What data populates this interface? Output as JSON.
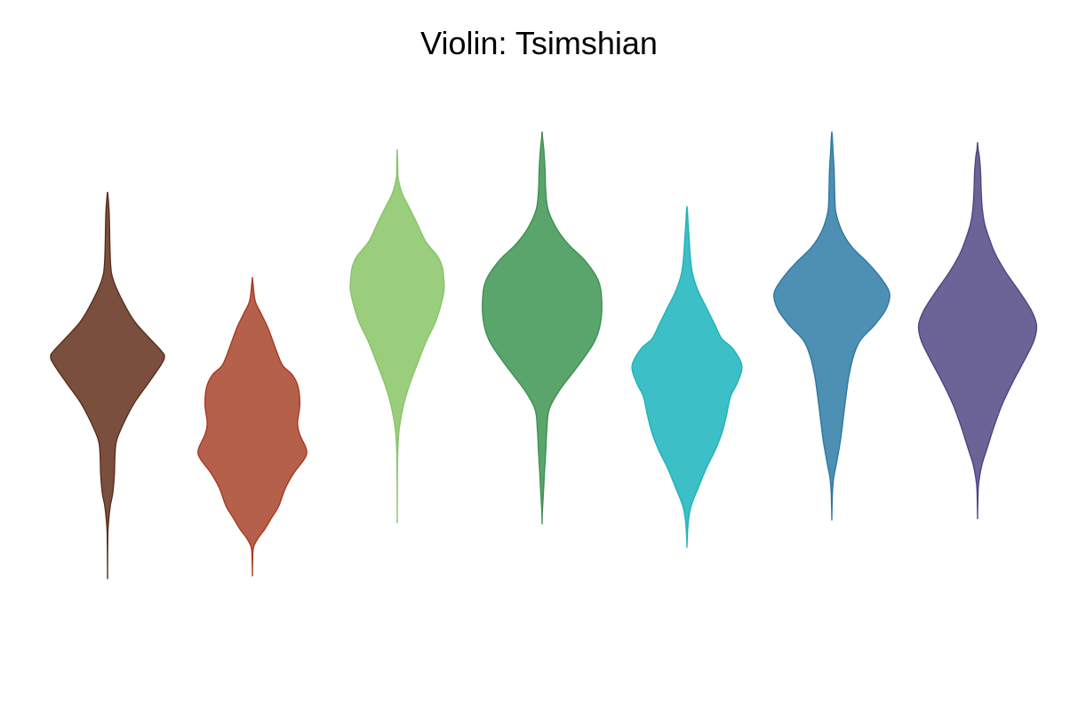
{
  "chart_data": {
    "type": "violin",
    "title": "Violin: Tsimshian",
    "xlabel": "",
    "ylabel": "",
    "grid": false,
    "legend": "none",
    "series": [
      {
        "color": "#7a4f3e",
        "stroke": "#5a2f1e",
        "profile": [
          [
            0,
            0
          ],
          [
            0.015,
            0.01
          ],
          [
            0.06,
            0.03
          ],
          [
            0.18,
            0.05
          ],
          [
            0.23,
            0.1
          ],
          [
            0.29,
            0.28
          ],
          [
            0.34,
            0.48
          ],
          [
            0.38,
            0.72
          ],
          [
            0.415,
            0.94
          ],
          [
            0.43,
            1.0
          ],
          [
            0.45,
            0.95
          ],
          [
            0.5,
            0.72
          ],
          [
            0.55,
            0.48
          ],
          [
            0.6,
            0.3
          ],
          [
            0.65,
            0.16
          ],
          [
            0.69,
            0.13
          ],
          [
            0.74,
            0.12
          ],
          [
            0.79,
            0.09
          ],
          [
            0.82,
            0.05
          ],
          [
            0.86,
            0.02
          ],
          [
            0.9,
            0.005
          ],
          [
            1,
            0
          ]
        ]
      },
      {
        "color": "#b5604a",
        "stroke": "#a83a22",
        "profile": [
          [
            0,
            0
          ],
          [
            0.02,
            0.01
          ],
          [
            0.08,
            0.05
          ],
          [
            0.12,
            0.15
          ],
          [
            0.17,
            0.28
          ],
          [
            0.23,
            0.4
          ],
          [
            0.27,
            0.48
          ],
          [
            0.3,
            0.56
          ],
          [
            0.33,
            0.73
          ],
          [
            0.37,
            0.83
          ],
          [
            0.43,
            0.86
          ],
          [
            0.49,
            0.82
          ],
          [
            0.53,
            0.86
          ],
          [
            0.58,
            0.98
          ],
          [
            0.61,
            0.95
          ],
          [
            0.66,
            0.75
          ],
          [
            0.71,
            0.6
          ],
          [
            0.77,
            0.48
          ],
          [
            0.81,
            0.35
          ],
          [
            0.85,
            0.22
          ],
          [
            0.88,
            0.1
          ],
          [
            0.91,
            0.02
          ],
          [
            0.95,
            0.005
          ],
          [
            1,
            0
          ]
        ]
      },
      {
        "color": "#9acd7c",
        "stroke": "#88c46a",
        "profile": [
          [
            0,
            0
          ],
          [
            0.05,
            0.01
          ],
          [
            0.08,
            0.02
          ],
          [
            0.12,
            0.1
          ],
          [
            0.16,
            0.25
          ],
          [
            0.2,
            0.4
          ],
          [
            0.25,
            0.58
          ],
          [
            0.29,
            0.82
          ],
          [
            0.32,
            0.92
          ],
          [
            0.35,
            0.95
          ],
          [
            0.38,
            0.96
          ],
          [
            0.42,
            0.9
          ],
          [
            0.47,
            0.78
          ],
          [
            0.52,
            0.6
          ],
          [
            0.58,
            0.42
          ],
          [
            0.64,
            0.25
          ],
          [
            0.7,
            0.12
          ],
          [
            0.76,
            0.04
          ],
          [
            0.82,
            0.01
          ],
          [
            0.88,
            0.003
          ],
          [
            1,
            0
          ]
        ]
      },
      {
        "color": "#5aa56c",
        "stroke": "#3f8f52",
        "profile": [
          [
            0,
            0
          ],
          [
            0.02,
            0.01
          ],
          [
            0.05,
            0.03
          ],
          [
            0.1,
            0.05
          ],
          [
            0.15,
            0.06
          ],
          [
            0.2,
            0.1
          ],
          [
            0.25,
            0.25
          ],
          [
            0.29,
            0.45
          ],
          [
            0.33,
            0.72
          ],
          [
            0.38,
            0.94
          ],
          [
            0.43,
            1.0
          ],
          [
            0.49,
            0.98
          ],
          [
            0.54,
            0.87
          ],
          [
            0.6,
            0.6
          ],
          [
            0.66,
            0.3
          ],
          [
            0.71,
            0.12
          ],
          [
            0.76,
            0.08
          ],
          [
            0.82,
            0.06
          ],
          [
            0.87,
            0.04
          ],
          [
            0.93,
            0.02
          ],
          [
            0.97,
            0.005
          ],
          [
            1,
            0
          ]
        ]
      },
      {
        "color": "#3cbfc6",
        "stroke": "#22b2b9",
        "profile": [
          [
            0,
            0
          ],
          [
            0.02,
            0.01
          ],
          [
            0.05,
            0.02
          ],
          [
            0.1,
            0.04
          ],
          [
            0.15,
            0.06
          ],
          [
            0.2,
            0.1
          ],
          [
            0.25,
            0.2
          ],
          [
            0.3,
            0.35
          ],
          [
            0.35,
            0.5
          ],
          [
            0.39,
            0.62
          ],
          [
            0.42,
            0.82
          ],
          [
            0.47,
            0.98
          ],
          [
            0.52,
            0.9
          ],
          [
            0.56,
            0.78
          ],
          [
            0.62,
            0.7
          ],
          [
            0.67,
            0.62
          ],
          [
            0.72,
            0.5
          ],
          [
            0.77,
            0.35
          ],
          [
            0.83,
            0.2
          ],
          [
            0.88,
            0.08
          ],
          [
            0.92,
            0.03
          ],
          [
            0.96,
            0.01
          ],
          [
            1,
            0
          ]
        ]
      },
      {
        "color": "#4e8fb4",
        "stroke": "#2f78a0",
        "profile": [
          [
            0,
            0
          ],
          [
            0.02,
            0.01
          ],
          [
            0.05,
            0.02
          ],
          [
            0.1,
            0.04
          ],
          [
            0.16,
            0.05
          ],
          [
            0.21,
            0.07
          ],
          [
            0.26,
            0.18
          ],
          [
            0.3,
            0.35
          ],
          [
            0.34,
            0.62
          ],
          [
            0.38,
            0.85
          ],
          [
            0.42,
            1.0
          ],
          [
            0.46,
            0.94
          ],
          [
            0.5,
            0.75
          ],
          [
            0.54,
            0.5
          ],
          [
            0.58,
            0.38
          ],
          [
            0.63,
            0.3
          ],
          [
            0.68,
            0.25
          ],
          [
            0.74,
            0.2
          ],
          [
            0.8,
            0.15
          ],
          [
            0.86,
            0.08
          ],
          [
            0.9,
            0.03
          ],
          [
            0.94,
            0.01
          ],
          [
            1,
            0
          ]
        ]
      },
      {
        "color": "#6c6496",
        "stroke": "#4f4582",
        "profile": [
          [
            0,
            0
          ],
          [
            0.02,
            0.01
          ],
          [
            0.04,
            0.03
          ],
          [
            0.08,
            0.05
          ],
          [
            0.13,
            0.06
          ],
          [
            0.18,
            0.08
          ],
          [
            0.22,
            0.12
          ],
          [
            0.26,
            0.2
          ],
          [
            0.3,
            0.3
          ],
          [
            0.35,
            0.48
          ],
          [
            0.4,
            0.7
          ],
          [
            0.45,
            0.9
          ],
          [
            0.49,
            0.99
          ],
          [
            0.53,
            0.95
          ],
          [
            0.58,
            0.8
          ],
          [
            0.64,
            0.6
          ],
          [
            0.7,
            0.42
          ],
          [
            0.76,
            0.28
          ],
          [
            0.82,
            0.16
          ],
          [
            0.86,
            0.08
          ],
          [
            0.9,
            0.03
          ],
          [
            0.93,
            0.01
          ],
          [
            1,
            0
          ]
        ]
      }
    ]
  }
}
